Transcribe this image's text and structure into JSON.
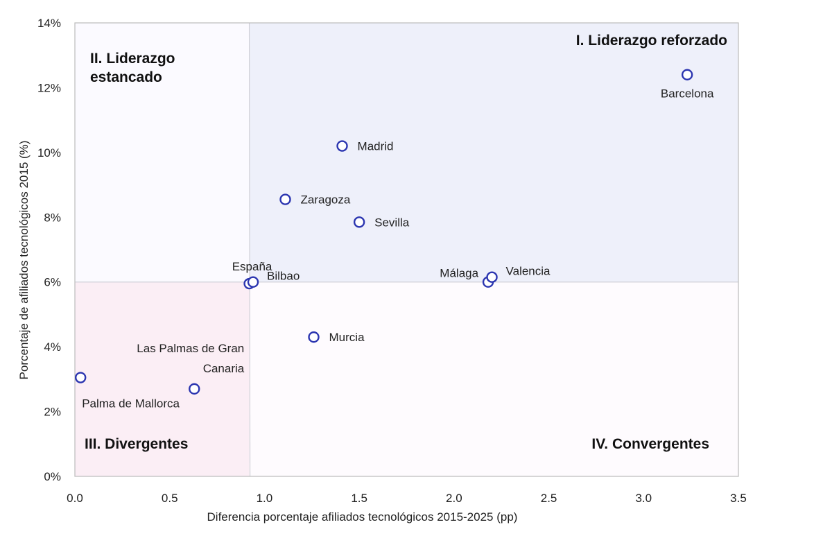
{
  "chart_data": {
    "type": "scatter",
    "title": "",
    "xlabel": "Diferencia porcentaje afiliados tecnológicos 2015-2025 (pp)",
    "ylabel": "Porcentaje de afiliados tecnológicos 2015 (%)",
    "xlim": [
      0,
      3.5
    ],
    "ylim": [
      0,
      14
    ],
    "x_ticks": [
      {
        "value": 0,
        "label": "0.0"
      },
      {
        "value": 0.5,
        "label": "0.5"
      },
      {
        "value": 1.0,
        "label": "1.0"
      },
      {
        "value": 1.5,
        "label": "1.5"
      },
      {
        "value": 2.0,
        "label": "2.0"
      },
      {
        "value": 2.5,
        "label": "2.5"
      },
      {
        "value": 3.0,
        "label": "3.0"
      },
      {
        "value": 3.5,
        "label": "3.5"
      }
    ],
    "y_ticks": [
      {
        "value": 0,
        "label": "0%"
      },
      {
        "value": 2,
        "label": "2%"
      },
      {
        "value": 4,
        "label": "4%"
      },
      {
        "value": 6,
        "label": "6%"
      },
      {
        "value": 8,
        "label": "8%"
      },
      {
        "value": 10,
        "label": "10%"
      },
      {
        "value": 12,
        "label": "12%"
      },
      {
        "value": 14,
        "label": "14%"
      }
    ],
    "reference": {
      "x": 0.92,
      "y": 6.0
    },
    "quadrants": [
      {
        "id": "q1",
        "label_lines": [
          "I. Liderazgo reforzado"
        ],
        "color": "#eef0fa",
        "anchor": "top-right"
      },
      {
        "id": "q2",
        "label_lines": [
          "II. Liderazgo",
          "estancado"
        ],
        "color": "#fbfaff",
        "anchor": "top-left"
      },
      {
        "id": "q3",
        "label_lines": [
          "III. Divergentes"
        ],
        "color": "#fbeef5",
        "anchor": "bottom-left"
      },
      {
        "id": "q4",
        "label_lines": [
          "IV. Convergentes"
        ],
        "color": "#fefbfe",
        "anchor": "bottom-right"
      }
    ],
    "marker_color": "#2b35b0",
    "points": [
      {
        "name": "Barcelona",
        "label_lines": [
          "Barcelona"
        ],
        "x": 3.23,
        "y": 12.4,
        "label_pos": "below"
      },
      {
        "name": "Madrid",
        "label_lines": [
          "Madrid"
        ],
        "x": 1.41,
        "y": 10.2,
        "label_pos": "right"
      },
      {
        "name": "Zaragoza",
        "label_lines": [
          "Zaragoza"
        ],
        "x": 1.11,
        "y": 8.55,
        "label_pos": "right"
      },
      {
        "name": "Sevilla",
        "label_lines": [
          "Sevilla"
        ],
        "x": 1.5,
        "y": 7.85,
        "label_pos": "right"
      },
      {
        "name": "España",
        "label_lines": [
          "España"
        ],
        "x": 0.92,
        "y": 5.95,
        "label_pos": "above"
      },
      {
        "name": "Bilbao",
        "label_lines": [
          "Bilbao"
        ],
        "x": 0.94,
        "y": 6.0,
        "label_pos": "right-up"
      },
      {
        "name": "Málaga",
        "label_lines": [
          "Málaga"
        ],
        "x": 2.18,
        "y": 6.0,
        "label_pos": "left-up"
      },
      {
        "name": "Valencia",
        "label_lines": [
          "Valencia"
        ],
        "x": 2.2,
        "y": 6.15,
        "label_pos": "right-up"
      },
      {
        "name": "Murcia",
        "label_lines": [
          "Murcia"
        ],
        "x": 1.26,
        "y": 4.3,
        "label_pos": "right"
      },
      {
        "name": "Las Palmas de Gran Canaria",
        "label_lines": [
          "Las Palmas de Gran",
          "Canaria"
        ],
        "x": 0.63,
        "y": 2.7,
        "label_pos": "above-left"
      },
      {
        "name": "Palma de Mallorca",
        "label_lines": [
          "Palma de Mallorca"
        ],
        "x": 0.03,
        "y": 3.05,
        "label_pos": "below-right"
      }
    ]
  }
}
